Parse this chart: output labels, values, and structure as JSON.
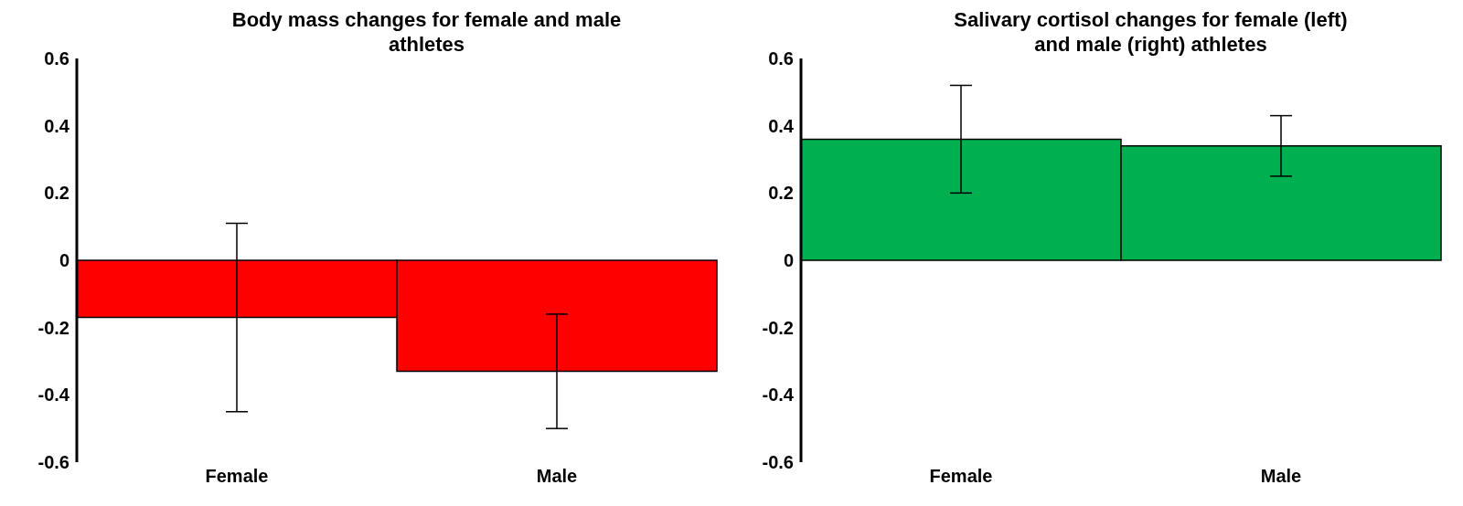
{
  "chart_data": [
    {
      "type": "bar",
      "title": "Body mass changes for female and male athletes",
      "categories": [
        "Female",
        "Male"
      ],
      "series": [
        {
          "color": "#ff0000",
          "values": [
            -0.17,
            -0.33
          ],
          "errors": [
            0.28,
            0.17
          ]
        }
      ],
      "ylim": [
        -0.6,
        0.6
      ],
      "yticks": [
        -0.6,
        -0.4,
        -0.2,
        0,
        0.2,
        0.4,
        0.6
      ],
      "grid": false,
      "legend": false
    },
    {
      "type": "bar",
      "title": "Salivary cortisol changes for female (left) and male (right) athletes",
      "categories": [
        "Female",
        "Male"
      ],
      "series": [
        {
          "color": "#00b050",
          "values": [
            0.36,
            0.34
          ],
          "errors": [
            0.16,
            0.09
          ]
        }
      ],
      "ylim": [
        -0.6,
        0.6
      ],
      "yticks": [
        -0.6,
        -0.4,
        -0.2,
        0,
        0.2,
        0.4,
        0.6
      ],
      "grid": false,
      "legend": false
    }
  ]
}
